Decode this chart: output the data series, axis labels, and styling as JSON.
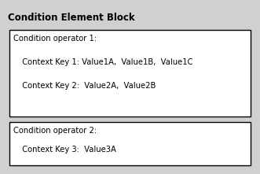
{
  "title": "Condition Element Block",
  "title_fontsize": 8.5,
  "title_fontweight": "bold",
  "outer_bg": "#d0d0d0",
  "inner_bg": "#ffffff",
  "text_color": "#000000",
  "inner_border_color": "#000000",
  "block1_title": "Condition operator 1:",
  "block1_lines": [
    "  Context Key 1: Value1A,  Value1B,  Value1C",
    "  Context Key 2:  Value2A,  Value2B"
  ],
  "block2_title": "Condition operator 2:",
  "block2_lines": [
    "  Context Key 3:  Value3A"
  ],
  "font_family": "DejaVu Sans",
  "font_size": 7.2,
  "fig_w": 3.31,
  "fig_h": 2.21,
  "dpi": 100
}
